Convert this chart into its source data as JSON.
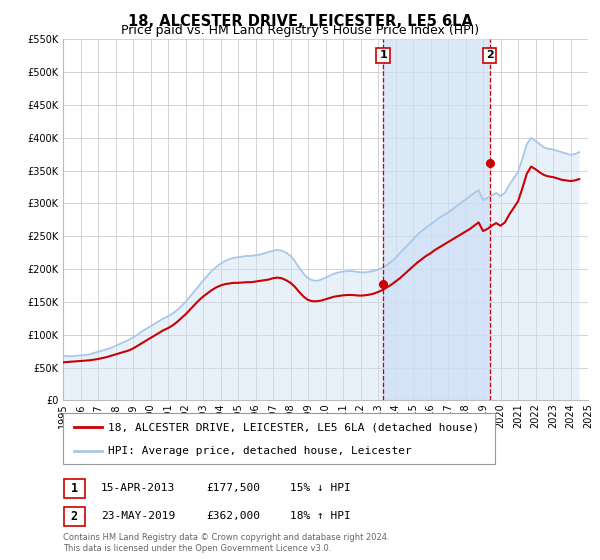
{
  "title": "18, ALCESTER DRIVE, LEICESTER, LE5 6LA",
  "subtitle": "Price paid vs. HM Land Registry's House Price Index (HPI)",
  "ylim": [
    0,
    550000
  ],
  "xlim": [
    1995,
    2025
  ],
  "yticks": [
    0,
    50000,
    100000,
    150000,
    200000,
    250000,
    300000,
    350000,
    400000,
    450000,
    500000,
    550000
  ],
  "ytick_labels": [
    "£0",
    "£50K",
    "£100K",
    "£150K",
    "£200K",
    "£250K",
    "£300K",
    "£350K",
    "£400K",
    "£450K",
    "£500K",
    "£550K"
  ],
  "xticks": [
    1995,
    1996,
    1997,
    1998,
    1999,
    2000,
    2001,
    2002,
    2003,
    2004,
    2005,
    2006,
    2007,
    2008,
    2009,
    2010,
    2011,
    2012,
    2013,
    2014,
    2015,
    2016,
    2017,
    2018,
    2019,
    2020,
    2021,
    2022,
    2023,
    2024,
    2025
  ],
  "background_color": "#ffffff",
  "plot_bg_color": "#ffffff",
  "grid_color": "#cccccc",
  "hpi_color": "#a8c8e8",
  "hpi_fill_color": "#cce0f5",
  "property_color": "#cc0000",
  "vline_color": "#cc0000",
  "marker_color": "#cc0000",
  "title_fontsize": 10.5,
  "subtitle_fontsize": 9,
  "tick_fontsize": 7,
  "legend_fontsize": 8,
  "annotation_fontsize": 8,
  "event1_x": 2013.29,
  "event1_y": 177500,
  "event1_label": "1",
  "event2_x": 2019.39,
  "event2_y": 362000,
  "event2_label": "2",
  "legend1_text": "18, ALCESTER DRIVE, LEICESTER, LE5 6LA (detached house)",
  "legend2_text": "HPI: Average price, detached house, Leicester",
  "table_row1": [
    "1",
    "15-APR-2013",
    "£177,500",
    "15% ↓ HPI"
  ],
  "table_row2": [
    "2",
    "23-MAY-2019",
    "£362,000",
    "18% ↑ HPI"
  ],
  "footnote": "Contains HM Land Registry data © Crown copyright and database right 2024.\nThis data is licensed under the Open Government Licence v3.0.",
  "hpi_x": [
    1995.0,
    1995.25,
    1995.5,
    1995.75,
    1996.0,
    1996.25,
    1996.5,
    1996.75,
    1997.0,
    1997.25,
    1997.5,
    1997.75,
    1998.0,
    1998.25,
    1998.5,
    1998.75,
    1999.0,
    1999.25,
    1999.5,
    1999.75,
    2000.0,
    2000.25,
    2000.5,
    2000.75,
    2001.0,
    2001.25,
    2001.5,
    2001.75,
    2002.0,
    2002.25,
    2002.5,
    2002.75,
    2003.0,
    2003.25,
    2003.5,
    2003.75,
    2004.0,
    2004.25,
    2004.5,
    2004.75,
    2005.0,
    2005.25,
    2005.5,
    2005.75,
    2006.0,
    2006.25,
    2006.5,
    2006.75,
    2007.0,
    2007.25,
    2007.5,
    2007.75,
    2008.0,
    2008.25,
    2008.5,
    2008.75,
    2009.0,
    2009.25,
    2009.5,
    2009.75,
    2010.0,
    2010.25,
    2010.5,
    2010.75,
    2011.0,
    2011.25,
    2011.5,
    2011.75,
    2012.0,
    2012.25,
    2012.5,
    2012.75,
    2013.0,
    2013.25,
    2013.5,
    2013.75,
    2014.0,
    2014.25,
    2014.5,
    2014.75,
    2015.0,
    2015.25,
    2015.5,
    2015.75,
    2016.0,
    2016.25,
    2016.5,
    2016.75,
    2017.0,
    2017.25,
    2017.5,
    2017.75,
    2018.0,
    2018.25,
    2018.5,
    2018.75,
    2019.0,
    2019.25,
    2019.5,
    2019.75,
    2020.0,
    2020.25,
    2020.5,
    2020.75,
    2021.0,
    2021.25,
    2021.5,
    2021.75,
    2022.0,
    2022.25,
    2022.5,
    2022.75,
    2023.0,
    2023.25,
    2023.5,
    2023.75,
    2024.0,
    2024.25,
    2024.5
  ],
  "hpi_y": [
    68000,
    67500,
    67000,
    68000,
    68500,
    69000,
    70000,
    72000,
    74000,
    76000,
    78000,
    80000,
    83000,
    86000,
    89000,
    92000,
    96000,
    100000,
    105000,
    109000,
    113000,
    117000,
    121000,
    125000,
    128000,
    132000,
    137000,
    143000,
    150000,
    158000,
    166000,
    174000,
    182000,
    190000,
    197000,
    203000,
    208000,
    212000,
    215000,
    217000,
    218000,
    219000,
    220000,
    220000,
    221000,
    222000,
    224000,
    226000,
    228000,
    229000,
    228000,
    225000,
    220000,
    212000,
    202000,
    193000,
    186000,
    183000,
    182000,
    184000,
    187000,
    190000,
    193000,
    195000,
    196000,
    197000,
    197000,
    196000,
    195000,
    195000,
    196000,
    197000,
    199000,
    202000,
    206000,
    211000,
    217000,
    224000,
    231000,
    238000,
    245000,
    252000,
    258000,
    263000,
    268000,
    273000,
    278000,
    282000,
    286000,
    291000,
    296000,
    301000,
    306000,
    311000,
    316000,
    320000,
    305000,
    308000,
    312000,
    316000,
    311000,
    316000,
    328000,
    338000,
    348000,
    368000,
    390000,
    400000,
    395000,
    390000,
    385000,
    383000,
    382000,
    380000,
    378000,
    376000,
    374000,
    375000,
    378000
  ],
  "prop_x": [
    1995.0,
    1995.25,
    1995.5,
    1995.75,
    1996.0,
    1996.25,
    1996.5,
    1996.75,
    1997.0,
    1997.25,
    1997.5,
    1997.75,
    1998.0,
    1998.25,
    1998.5,
    1998.75,
    1999.0,
    1999.25,
    1999.5,
    1999.75,
    2000.0,
    2000.25,
    2000.5,
    2000.75,
    2001.0,
    2001.25,
    2001.5,
    2001.75,
    2002.0,
    2002.25,
    2002.5,
    2002.75,
    2003.0,
    2003.25,
    2003.5,
    2003.75,
    2004.0,
    2004.25,
    2004.5,
    2004.75,
    2005.0,
    2005.25,
    2005.5,
    2005.75,
    2006.0,
    2006.25,
    2006.5,
    2006.75,
    2007.0,
    2007.25,
    2007.5,
    2007.75,
    2008.0,
    2008.25,
    2008.5,
    2008.75,
    2009.0,
    2009.25,
    2009.5,
    2009.75,
    2010.0,
    2010.25,
    2010.5,
    2010.75,
    2011.0,
    2011.25,
    2011.5,
    2011.75,
    2012.0,
    2012.25,
    2012.5,
    2012.75,
    2013.0,
    2013.25,
    2013.5,
    2013.75,
    2014.0,
    2014.25,
    2014.5,
    2014.75,
    2015.0,
    2015.25,
    2015.5,
    2015.75,
    2016.0,
    2016.25,
    2016.5,
    2016.75,
    2017.0,
    2017.25,
    2017.5,
    2017.75,
    2018.0,
    2018.25,
    2018.5,
    2018.75,
    2019.0,
    2019.25,
    2019.5,
    2019.75,
    2020.0,
    2020.25,
    2020.5,
    2020.75,
    2021.0,
    2021.25,
    2021.5,
    2021.75,
    2022.0,
    2022.25,
    2022.5,
    2022.75,
    2023.0,
    2023.25,
    2023.5,
    2023.75,
    2024.0,
    2024.25,
    2024.5
  ],
  "prop_y": [
    58000,
    58500,
    59000,
    59500,
    60000,
    60500,
    61000,
    62000,
    63000,
    64500,
    66000,
    68000,
    70000,
    72000,
    74000,
    76000,
    79000,
    83000,
    87000,
    91000,
    95000,
    99000,
    103000,
    107000,
    110000,
    114000,
    119000,
    125000,
    131000,
    138000,
    145000,
    152000,
    158000,
    163000,
    168000,
    172000,
    175000,
    177000,
    178000,
    179000,
    179000,
    179500,
    180000,
    180000,
    181000,
    182000,
    183000,
    184000,
    186000,
    187000,
    186000,
    183000,
    179000,
    173000,
    165000,
    158000,
    153000,
    151000,
    151000,
    152000,
    154000,
    156000,
    158000,
    159000,
    160000,
    160500,
    160500,
    160000,
    159500,
    160000,
    161000,
    162500,
    165000,
    168000,
    172000,
    176000,
    181000,
    186000,
    192000,
    198000,
    204000,
    210000,
    215000,
    220000,
    224000,
    229000,
    233000,
    237000,
    241000,
    245000,
    249000,
    253000,
    257000,
    261000,
    266000,
    271000,
    258000,
    261000,
    266000,
    270000,
    266000,
    271000,
    283000,
    293000,
    303000,
    323000,
    345000,
    356000,
    352000,
    347000,
    343000,
    341000,
    340000,
    338000,
    336000,
    335000,
    334000,
    335000,
    337000
  ],
  "shaded_start": 2013.29,
  "shaded_end": 2019.39
}
